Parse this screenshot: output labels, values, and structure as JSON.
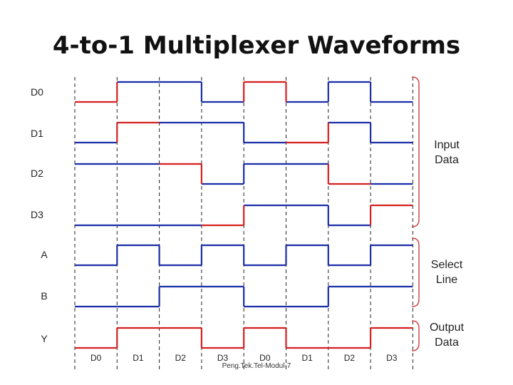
{
  "title": "4-to-1 Multiplexer Waveforms",
  "footer": "Peng.Tek.Tel-Modul-7",
  "colors": {
    "active": "#d42020",
    "inactive": "#1a2ea8",
    "divider": "#222222",
    "bracket": "#d44a4a",
    "text": "#222222"
  },
  "signals": [
    {
      "label": "D0",
      "levels": [
        0,
        1,
        1,
        0,
        1,
        0,
        1,
        0
      ],
      "active": [
        true,
        false,
        false,
        false,
        true,
        false,
        false,
        false
      ]
    },
    {
      "label": "D1",
      "levels": [
        0,
        1,
        1,
        1,
        0,
        0,
        1,
        0
      ],
      "active": [
        false,
        true,
        false,
        false,
        false,
        true,
        false,
        false
      ]
    },
    {
      "label": "D2",
      "levels": [
        1,
        1,
        1,
        0,
        1,
        1,
        0,
        0
      ],
      "active": [
        false,
        false,
        true,
        false,
        false,
        false,
        true,
        false
      ]
    },
    {
      "label": "D3",
      "levels": [
        0,
        0,
        0,
        0,
        1,
        1,
        0,
        1
      ],
      "active": [
        false,
        false,
        false,
        true,
        false,
        false,
        false,
        true
      ]
    },
    {
      "label": "A",
      "levels": [
        0,
        1,
        0,
        1,
        0,
        1,
        0,
        1
      ],
      "active": [
        false,
        false,
        false,
        false,
        false,
        false,
        false,
        false
      ]
    },
    {
      "label": "B",
      "levels": [
        0,
        0,
        1,
        1,
        0,
        0,
        1,
        1
      ],
      "active": [
        false,
        false,
        false,
        false,
        false,
        false,
        false,
        false
      ]
    },
    {
      "label": "Y",
      "levels": [
        0,
        1,
        1,
        0,
        1,
        0,
        0,
        1
      ],
      "active": [
        true,
        true,
        true,
        true,
        true,
        true,
        true,
        true
      ]
    }
  ],
  "slot_labels": [
    "D0",
    "D1",
    "D2",
    "D3",
    "D0",
    "D1",
    "D2",
    "D3"
  ],
  "groups": [
    {
      "label_line1": "Input",
      "label_line2": "Data"
    },
    {
      "label_line1": "Select",
      "label_line2": "Line"
    },
    {
      "label_line1": "Output",
      "label_line2": "Data"
    }
  ]
}
